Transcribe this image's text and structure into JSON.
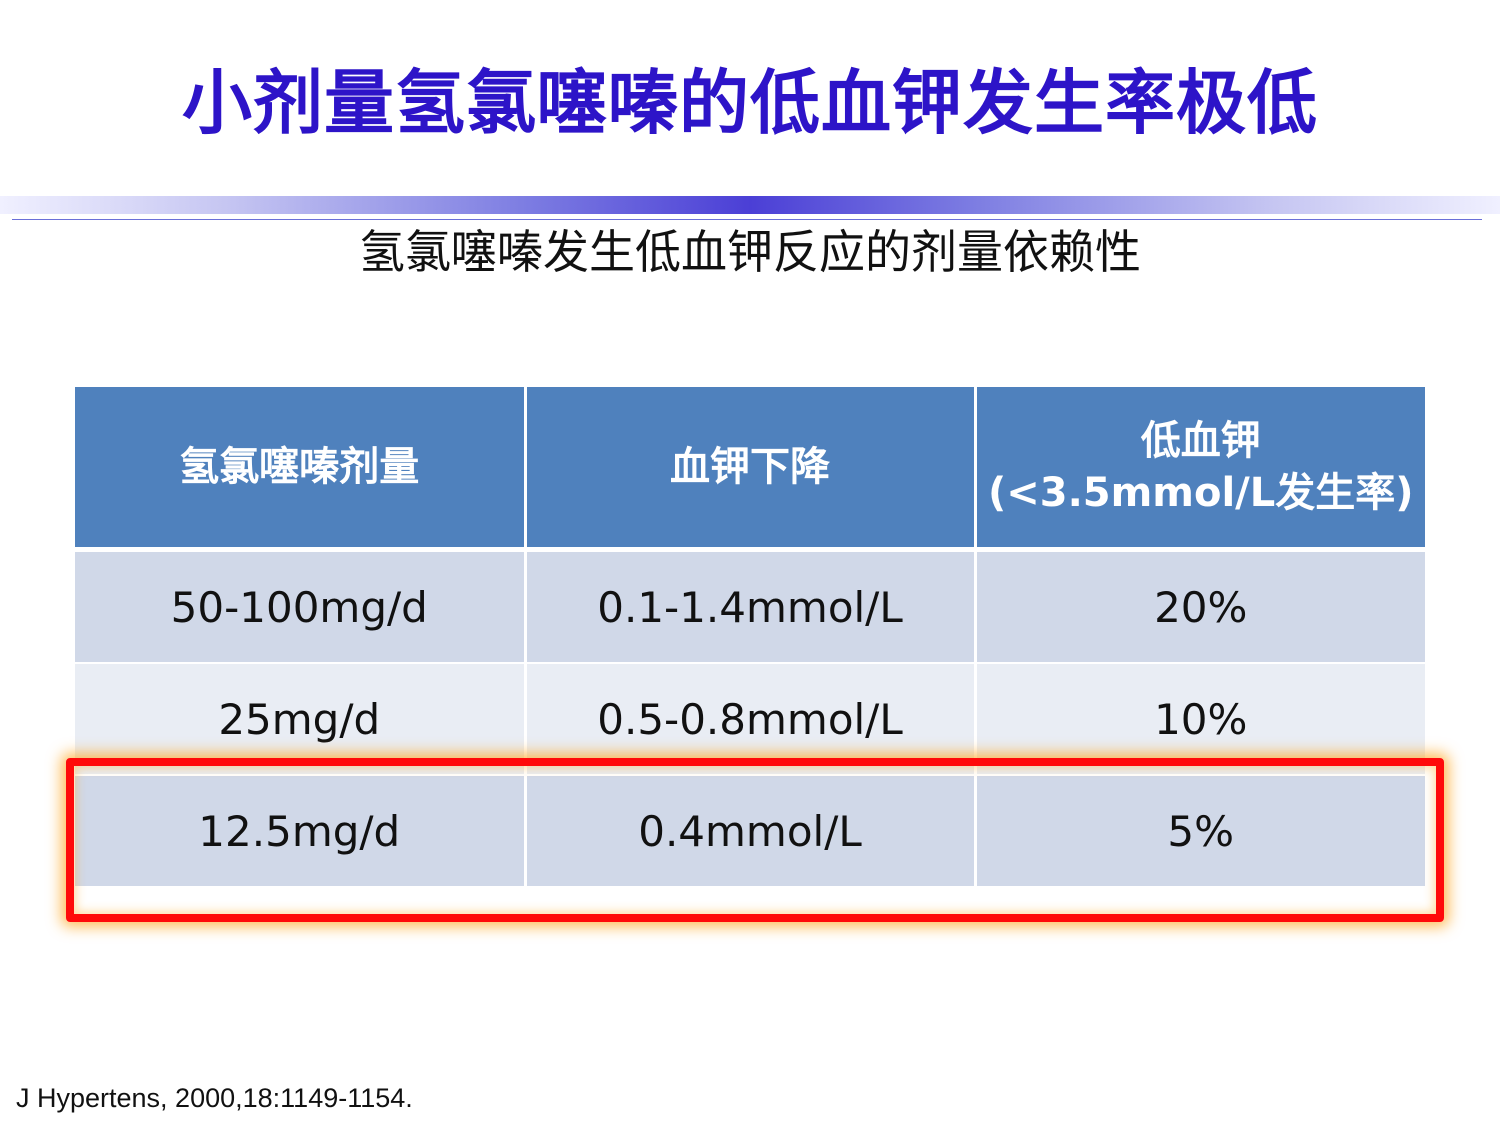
{
  "title": "小剂量氢氯噻嗪的低血钾发生率极低",
  "subtitle": "氢氯噻嗪发生低血钾反应的剂量依赖性",
  "table": {
    "headers": [
      "氢氯噻嗪剂量",
      "血钾下降",
      "低血钾",
      "(<3.5mmol/L发生率)"
    ],
    "rows": [
      [
        "50-100mg/d",
        "0.1-1.4mmol/L",
        "20%"
      ],
      [
        "25mg/d",
        "0.5-0.8mmol/L",
        "10%"
      ],
      [
        "12.5mg/d",
        "0.4mmol/L",
        "5%"
      ]
    ]
  },
  "citation": "J Hypertens, 2000,18:1149-1154.",
  "colors": {
    "title": "#2d14c8",
    "header_bg": "#4f81bd",
    "row_odd_bg": "#d0d8e8",
    "row_even_bg": "#e9edf4",
    "highlight_border": "#ff0a0a"
  }
}
